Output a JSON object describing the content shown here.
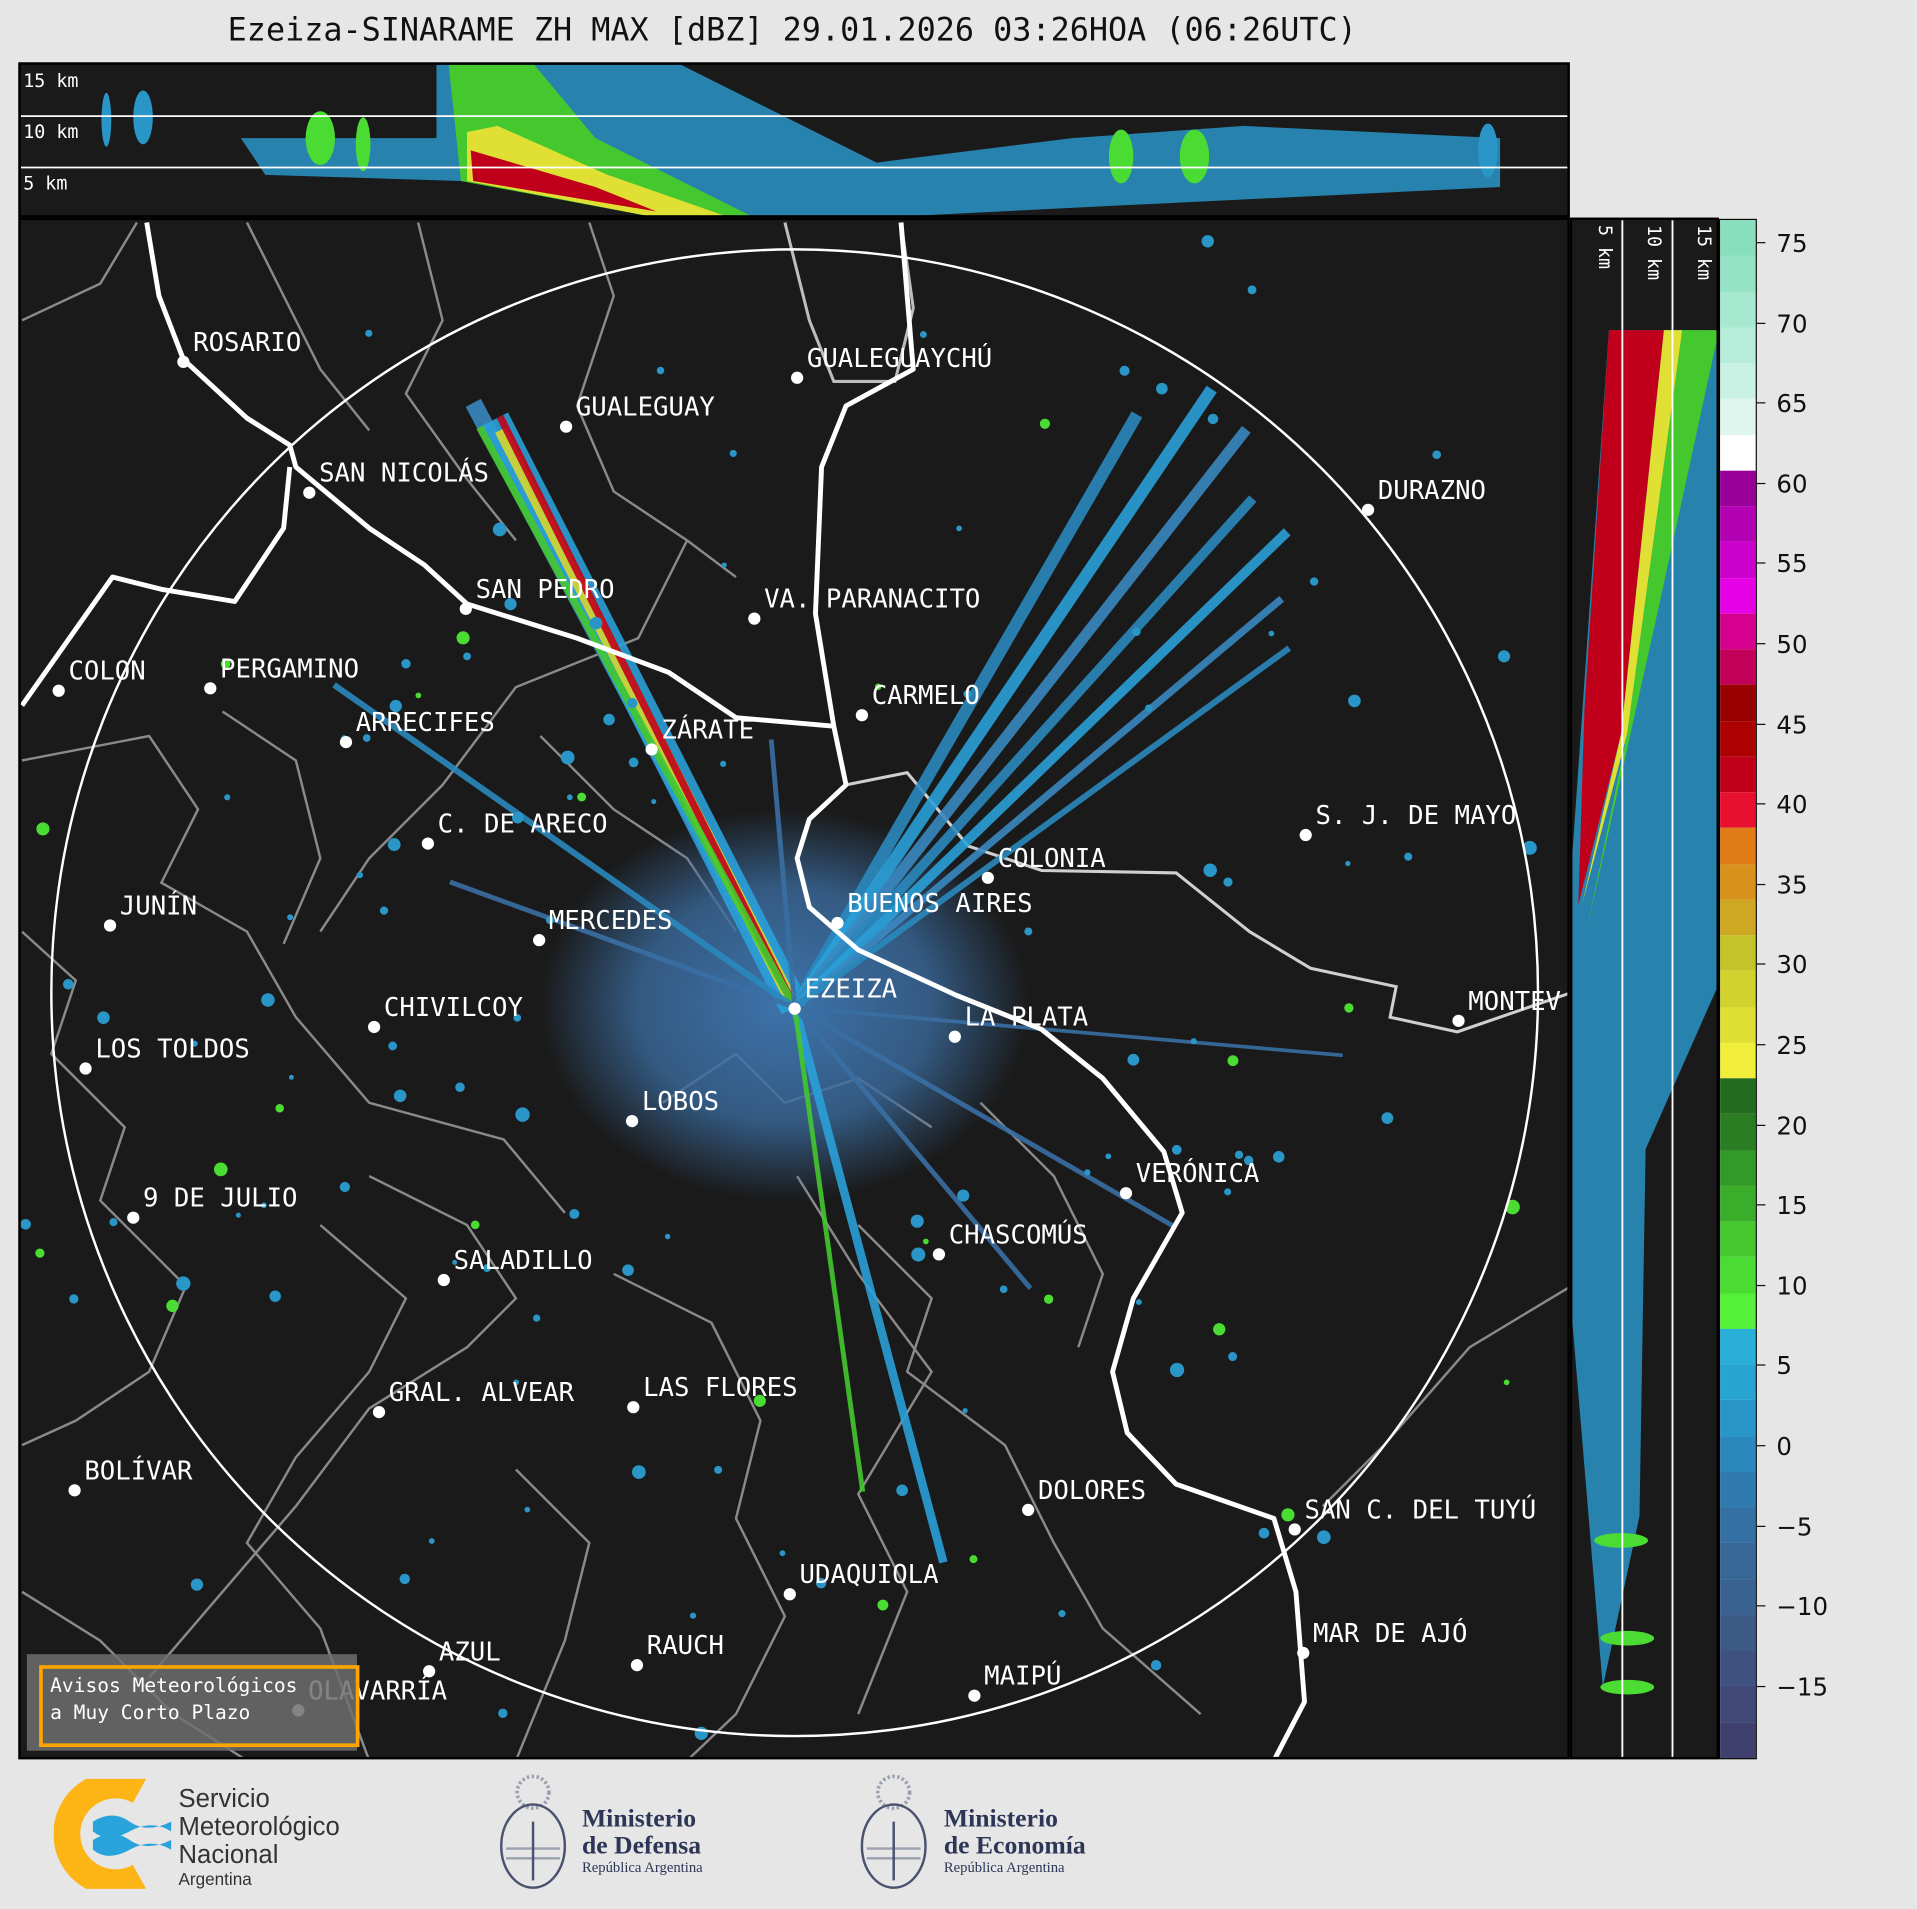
{
  "title": "Ezeiza-SINARAME ZH MAX [dBZ] 29.01.2026 03:26HOA (06:26UTC)",
  "top_panel": {
    "height_labels": [
      "15 km",
      "10 km",
      "5 km"
    ]
  },
  "side_panel": {
    "height_labels": [
      "5 km",
      "10 km",
      "15 km"
    ]
  },
  "colorbar": {
    "unit": "dBZ",
    "ticks": [
      "75",
      "70",
      "65",
      "60",
      "55",
      "50",
      "45",
      "40",
      "35",
      "30",
      "25",
      "20",
      "15",
      "10",
      "5",
      "0",
      "−5",
      "−10",
      "−15"
    ],
    "colors": [
      "#88dfbd",
      "#93e3c4",
      "#a6e9d0",
      "#b5ecda",
      "#c8f1e4",
      "#dff6ee",
      "#ffffff",
      "#990099",
      "#b300b3",
      "#cc00cc",
      "#e600e6",
      "#d6008f",
      "#c2005a",
      "#990000",
      "#ad0000",
      "#c0001a",
      "#e8102f",
      "#e07b17",
      "#d8921b",
      "#cfa823",
      "#c4c42a",
      "#d2d22e",
      "#e0e034",
      "#f0ee3a",
      "#226b1f",
      "#2a7d23",
      "#329a26",
      "#3aad2a",
      "#44c82e",
      "#4bdc33",
      "#55f03a",
      "#2ab0d8",
      "#27a4d2",
      "#2896c8",
      "#2a88bd",
      "#2f7bb0",
      "#3470a3",
      "#386898",
      "#3a6290",
      "#3d5a86",
      "#3e5180",
      "#3f4877",
      "#40406e"
    ]
  },
  "cities": [
    "ROSARIO",
    "GUALEGUAYCHÚ",
    "GUALEGUAY",
    "SAN NICOLÁS",
    "DURAZNO",
    "SAN PEDRO",
    "VA. PARANACITO",
    "COLON",
    "PERGAMINO",
    "CARMELO",
    "ARRECIFES",
    "ZÁRATE",
    "S. J. DE MAYO",
    "C. DE ARECO",
    "COLONIA",
    "BUENOS AIRES",
    "JUNÍN",
    "MERCEDES",
    "EZEIZA",
    "MONTEV",
    "CHIVILCOY",
    "LA PLATA",
    "LOS TOLDOS",
    "LOBOS",
    "VERÓNICA",
    "9 DE JULIO",
    "CHASCOMÚS",
    "SALADILLO",
    "GRAL. ALVEAR",
    "LAS FLORES",
    "BOLÍVAR",
    "DOLORES",
    "SAN C. DEL TUYÚ",
    "UDAQUIOLA",
    "MAR DE AJÓ",
    "AZUL",
    "RAUCH",
    "OLAVARRÍA",
    "MAIPÚ"
  ],
  "avisos": {
    "line1": "Avisos Meteorológicos",
    "line2": "a Muy Corto Plazo"
  },
  "logos": {
    "smn": {
      "line1": "Servicio",
      "line2": "Meteorológico",
      "line3": "Nacional",
      "line4": "Argentina"
    },
    "defensa": {
      "line1": "Ministerio",
      "line2": "de Defensa",
      "line3": "República Argentina"
    },
    "economia": {
      "line1": "Ministerio",
      "line2": "de Economía",
      "line3": "República Argentina"
    }
  }
}
